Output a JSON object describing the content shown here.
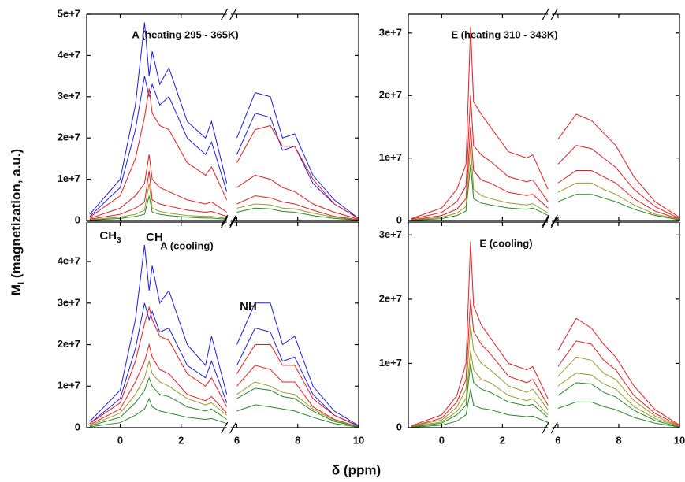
{
  "figure": {
    "y_label": {
      "main": "M",
      "sub": "I",
      "rest": " (magnetization, a.u.)"
    },
    "x_label": "δ (ppm)"
  },
  "chart_data": [
    {
      "type": "line",
      "title": "A (heating 295 - 365K)",
      "x": [
        -1,
        0,
        0.5,
        0.8,
        0.95,
        1.05,
        1.3,
        1.6,
        2.2,
        2.8,
        3.0,
        3.5,
        6,
        6.6,
        7.1,
        7.5,
        7.9,
        8.5,
        9.2,
        10
      ],
      "xlim": [
        -1.1,
        10
      ],
      "x_break": [
        3.5,
        5.8
      ],
      "xticks": [
        0,
        2,
        6,
        8,
        10
      ],
      "ylim": [
        0,
        50000000.0
      ],
      "yticks": [
        0,
        {
          "value": 10000000.0,
          "label": "1e+7"
        },
        {
          "value": 20000000.0,
          "label": "2e+7"
        },
        {
          "value": 30000000.0,
          "label": "3e+7"
        },
        {
          "value": 40000000.0,
          "label": "4e+7"
        },
        {
          "value": 50000000.0,
          "label": "5e+7"
        }
      ],
      "series": [
        {
          "color": "#1c1ce6",
          "values": [
            1500000.0,
            10000000.0,
            28000000.0,
            48000000.0,
            35000000.0,
            41000000.0,
            33000000.0,
            37000000.0,
            24000000.0,
            20000000.0,
            24000000.0,
            9000000.0,
            20000000.0,
            31000000.0,
            30000000.0,
            20000000.0,
            21000000.0,
            11000000.0,
            5000000.0,
            500000.0
          ]
        },
        {
          "color": "#1c1ce6",
          "values": [
            1000000.0,
            8000000.0,
            22000000.0,
            35000000.0,
            30000000.0,
            33000000.0,
            28000000.0,
            30000000.0,
            20000000.0,
            16000000.0,
            19000000.0,
            7000000.0,
            16000000.0,
            26000000.0,
            25000000.0,
            17000000.0,
            18000000.0,
            9000000.0,
            4000000.0,
            500000.0
          ]
        },
        {
          "color": "#e61c1c",
          "values": [
            800000.0,
            6000000.0,
            15000000.0,
            25000000.0,
            32000000.0,
            26000000.0,
            23000000.0,
            22000000.0,
            14000000.0,
            11000000.0,
            13000000.0,
            5000000.0,
            14000000.0,
            22000000.0,
            23000000.0,
            18000000.0,
            18000000.0,
            10000000.0,
            4000000.0,
            500000.0
          ]
        },
        {
          "color": "#e61c1c",
          "values": [
            500000.0,
            3000000.0,
            6000000.0,
            9000000.0,
            16000000.0,
            10000000.0,
            8000000.0,
            7000000.0,
            5000000.0,
            4000000.0,
            4500000.0,
            2000000.0,
            8000000.0,
            11000000.0,
            10000000.0,
            8000000.0,
            7000000.0,
            4000000.0,
            2000000.0,
            300000.0
          ]
        },
        {
          "color": "#e61c1c",
          "values": [
            300000.0,
            1500000.0,
            3000000.0,
            4500000.0,
            12000000.0,
            5000000.0,
            4000000.0,
            3500000.0,
            2500000.0,
            2000000.0,
            2200000.0,
            1000000.0,
            4000000.0,
            6000000.0,
            5500000.0,
            4500000.0,
            4000000.0,
            2500000.0,
            1000000.0,
            200000.0
          ]
        },
        {
          "color": "#9a9a28",
          "values": [
            200000.0,
            800000.0,
            1500000.0,
            2500000.0,
            9000000.0,
            3000000.0,
            2200000.0,
            1800000.0,
            1200000.0,
            1000000.0,
            1000000.0,
            500000.0,
            3000000.0,
            4000000.0,
            3800000.0,
            3000000.0,
            2800000.0,
            1800000.0,
            800000.0,
            100000.0
          ]
        },
        {
          "color": "#248a24",
          "values": [
            100000.0,
            500000.0,
            1000000.0,
            1500000.0,
            6000000.0,
            2000000.0,
            1500000.0,
            1200000.0,
            800000.0,
            600000.0,
            600000.0,
            300000.0,
            2000000.0,
            3000000.0,
            2800000.0,
            2200000.0,
            2000000.0,
            1200000.0,
            500000.0,
            100000.0
          ]
        }
      ]
    },
    {
      "type": "line",
      "title": "E (heating 310 - 343K)",
      "x": [
        -1,
        0,
        0.5,
        0.8,
        0.95,
        1.05,
        1.3,
        1.6,
        2.2,
        2.8,
        3.0,
        3.5,
        6,
        6.6,
        7.1,
        7.5,
        7.9,
        8.5,
        9.2,
        10
      ],
      "xlim": [
        -1.1,
        10
      ],
      "x_break": [
        3.5,
        5.8
      ],
      "xticks": [
        0,
        2,
        6,
        8,
        10
      ],
      "ylim": [
        0,
        33000000.0
      ],
      "yticks": [
        0,
        {
          "value": 10000000.0,
          "label": "1e+7"
        },
        {
          "value": 20000000.0,
          "label": "2e+7"
        },
        {
          "value": 30000000.0,
          "label": "3e+7"
        }
      ],
      "series": [
        {
          "color": "#e61c1c",
          "values": [
            300000.0,
            2000000.0,
            5000000.0,
            9000000.0,
            31000000.0,
            19000000.0,
            17000000.0,
            15000000.0,
            11000000.0,
            10000000.0,
            10500000.0,
            5000000.0,
            13000000.0,
            17000000.0,
            16000000.0,
            14000000.0,
            12000000.0,
            7000000.0,
            3000000.0,
            500000.0
          ]
        },
        {
          "color": "#e61c1c",
          "values": [
            200000.0,
            1300000.0,
            3000000.0,
            5500000.0,
            20000000.0,
            12000000.0,
            10500000.0,
            9500000.0,
            7000000.0,
            6200000.0,
            6500000.0,
            3000000.0,
            9000000.0,
            12000000.0,
            11500000.0,
            10000000.0,
            8500000.0,
            5000000.0,
            2200000.0,
            300000.0
          ]
        },
        {
          "color": "#e61c1c",
          "values": [
            100000.0,
            800000.0,
            1800000.0,
            3500000.0,
            15000000.0,
            8000000.0,
            6500000.0,
            6000000.0,
            4500000.0,
            4000000.0,
            4200000.0,
            2000000.0,
            6000000.0,
            8000000.0,
            8000000.0,
            7000000.0,
            6000000.0,
            3500000.0,
            1500000.0,
            200000.0
          ]
        },
        {
          "color": "#9a9a28",
          "values": [
            100000.0,
            500000.0,
            1200000.0,
            2200000.0,
            12000000.0,
            5000000.0,
            4000000.0,
            3500000.0,
            2800000.0,
            2500000.0,
            2700000.0,
            1200000.0,
            4500000.0,
            6000000.0,
            6000000.0,
            5000000.0,
            4200000.0,
            2500000.0,
            1000000.0,
            200000.0
          ]
        },
        {
          "color": "#248a24",
          "values": [
            50000.0,
            300000.0,
            800000.0,
            1500000.0,
            9000000.0,
            3500000.0,
            2800000.0,
            2500000.0,
            2000000.0,
            1800000.0,
            2000000.0,
            800000.0,
            3000000.0,
            4200000.0,
            4200000.0,
            3600000.0,
            3000000.0,
            1800000.0,
            800000.0,
            100000.0
          ]
        }
      ]
    },
    {
      "type": "line",
      "title": "A (cooling)",
      "annotations": [
        {
          "text": "CH",
          "sub": "3"
        },
        {
          "text": "CH"
        },
        {
          "text": "NH"
        }
      ],
      "x": [
        -1,
        0,
        0.5,
        0.8,
        0.95,
        1.05,
        1.3,
        1.6,
        2.2,
        2.8,
        3.0,
        3.5,
        6,
        6.6,
        7.1,
        7.5,
        7.9,
        8.5,
        9.2,
        10
      ],
      "xlim": [
        -1.1,
        10
      ],
      "x_break": [
        3.5,
        5.8
      ],
      "xticks": [
        0,
        2,
        6,
        8,
        10
      ],
      "ylim": [
        0,
        49500000.0
      ],
      "yticks": [
        0,
        {
          "value": 10000000.0,
          "label": "1e+7"
        },
        {
          "value": 20000000.0,
          "label": "2e+7"
        },
        {
          "value": 30000000.0,
          "label": "3e+7"
        },
        {
          "value": 40000000.0,
          "label": "4e+7"
        }
      ],
      "series": [
        {
          "color": "#1c1ce6",
          "values": [
            1500000.0,
            9000000.0,
            26000000.0,
            44000000.0,
            33000000.0,
            39000000.0,
            30000000.0,
            33000000.0,
            20000000.0,
            15000000.0,
            22000000.0,
            8000000.0,
            20000000.0,
            30000000.0,
            30000000.0,
            20000000.0,
            22000000.0,
            10000000.0,
            4000000.0,
            500000.0
          ]
        },
        {
          "color": "#1c1ce6",
          "values": [
            1000000.0,
            7000000.0,
            19000000.0,
            30000000.0,
            26000000.0,
            28000000.0,
            23000000.0,
            24000000.0,
            15000000.0,
            12000000.0,
            16000000.0,
            6000000.0,
            15000000.0,
            24000000.0,
            23000000.0,
            16000000.0,
            17000000.0,
            8000000.0,
            3000000.0,
            400000.0
          ]
        },
        {
          "color": "#e61c1c",
          "values": [
            1000000.0,
            6000000.0,
            16000000.0,
            25000000.0,
            29000000.0,
            26000000.0,
            22000000.0,
            21000000.0,
            13000000.0,
            10000000.0,
            12000000.0,
            5000000.0,
            13000000.0,
            20000000.0,
            20000000.0,
            15000000.0,
            15000000.0,
            7000000.0,
            3000000.0,
            300000.0
          ]
        },
        {
          "color": "#e61c1c",
          "values": [
            700000.0,
            4500000.0,
            11000000.0,
            16000000.0,
            20000000.0,
            17000000.0,
            14000000.0,
            13000000.0,
            8000000.0,
            6500000.0,
            7500000.0,
            3500000.0,
            10000000.0,
            15000000.0,
            14000000.0,
            11000000.0,
            11000000.0,
            5000000.0,
            2000000.0,
            200000.0
          ]
        },
        {
          "color": "#9a9a28",
          "values": [
            500000.0,
            3500000.0,
            8000000.0,
            12000000.0,
            16000000.0,
            13000000.0,
            11000000.0,
            10000000.0,
            7000000.0,
            5500000.0,
            6000000.0,
            3000000.0,
            8000000.0,
            11000000.0,
            10000000.0,
            8500000.0,
            8000000.0,
            4500000.0,
            1800000.0,
            200000.0
          ]
        },
        {
          "color": "#248a24",
          "values": [
            400000.0,
            2500000.0,
            6000000.0,
            9000000.0,
            12000000.0,
            10000000.0,
            8000000.0,
            7500000.0,
            5000000.0,
            4000000.0,
            4500000.0,
            2000000.0,
            7000000.0,
            9500000.0,
            9000000.0,
            7500000.0,
            7000000.0,
            4000000.0,
            1500000.0,
            200000.0
          ]
        },
        {
          "color": "#248a24",
          "values": [
            200000.0,
            1200000.0,
            3000000.0,
            4500000.0,
            7000000.0,
            5000000.0,
            4000000.0,
            3500000.0,
            2500000.0,
            2000000.0,
            2200000.0,
            1000000.0,
            4000000.0,
            5500000.0,
            5000000.0,
            4500000.0,
            4000000.0,
            2500000.0,
            1000000.0,
            100000.0
          ]
        }
      ]
    },
    {
      "type": "line",
      "title": "E (cooling)",
      "x": [
        -1,
        0,
        0.5,
        0.8,
        0.95,
        1.05,
        1.3,
        1.6,
        2.2,
        2.8,
        3.0,
        3.5,
        6,
        6.6,
        7.1,
        7.5,
        7.9,
        8.5,
        9.2,
        10
      ],
      "xlim": [
        -1.1,
        10
      ],
      "x_break": [
        3.5,
        5.8
      ],
      "xticks": [
        0,
        2,
        6,
        8,
        10
      ],
      "ylim": [
        0,
        32000000.0
      ],
      "yticks": [
        0,
        {
          "value": 10000000.0,
          "label": "1e+7"
        },
        {
          "value": 20000000.0,
          "label": "2e+7"
        },
        {
          "value": 30000000.0,
          "label": "3e+7"
        }
      ],
      "series": [
        {
          "color": "#e61c1c",
          "values": [
            300000.0,
            2000000.0,
            5000000.0,
            10000000.0,
            29000000.0,
            19000000.0,
            16000000.0,
            14000000.0,
            10000000.0,
            9000000.0,
            9500000.0,
            4500000.0,
            12000000.0,
            17000000.0,
            15500000.0,
            13000000.0,
            11000000.0,
            6500000.0,
            2800000.0,
            400000.0
          ]
        },
        {
          "color": "#e61c1c",
          "values": [
            200000.0,
            1500000.0,
            4000000.0,
            7500000.0,
            20000000.0,
            15000000.0,
            13000000.0,
            11500000.0,
            8000000.0,
            7000000.0,
            7500000.0,
            3500000.0,
            9500000.0,
            13500000.0,
            13000000.0,
            10500000.0,
            9000000.0,
            5000000.0,
            2200000.0,
            300000.0
          ]
        },
        {
          "color": "#9a9a28",
          "values": [
            200000.0,
            1200000.0,
            3200000.0,
            6000000.0,
            16000000.0,
            12000000.0,
            10000000.0,
            9000000.0,
            6500000.0,
            5500000.0,
            6000000.0,
            2800000.0,
            8000000.0,
            11000000.0,
            10500000.0,
            8500000.0,
            7500000.0,
            4200000.0,
            1800000.0,
            200000.0
          ]
        },
        {
          "color": "#9a9a28",
          "values": [
            150000.0,
            900000.0,
            2500000.0,
            4500000.0,
            12000000.0,
            9000000.0,
            7500000.0,
            7000000.0,
            5000000.0,
            4200000.0,
            4500000.0,
            2000000.0,
            6500000.0,
            8500000.0,
            8200000.0,
            6800000.0,
            6000000.0,
            3300000.0,
            1400000.0,
            200000.0
          ]
        },
        {
          "color": "#248a24",
          "values": [
            100000.0,
            700000.0,
            2000000.0,
            3500000.0,
            10000000.0,
            7000000.0,
            6000000.0,
            5500000.0,
            4000000.0,
            3400000.0,
            3600000.0,
            1600000.0,
            5000000.0,
            7000000.0,
            6800000.0,
            5500000.0,
            4800000.0,
            2700000.0,
            1100000.0,
            100000.0
          ]
        },
        {
          "color": "#248a24",
          "values": [
            50000.0,
            400000.0,
            1000000.0,
            2000000.0,
            6000000.0,
            3500000.0,
            3000000.0,
            2800000.0,
            2000000.0,
            1700000.0,
            1800000.0,
            800000.0,
            3000000.0,
            4000000.0,
            4000000.0,
            3300000.0,
            2800000.0,
            1600000.0,
            700000.0,
            100000.0
          ]
        }
      ]
    }
  ]
}
